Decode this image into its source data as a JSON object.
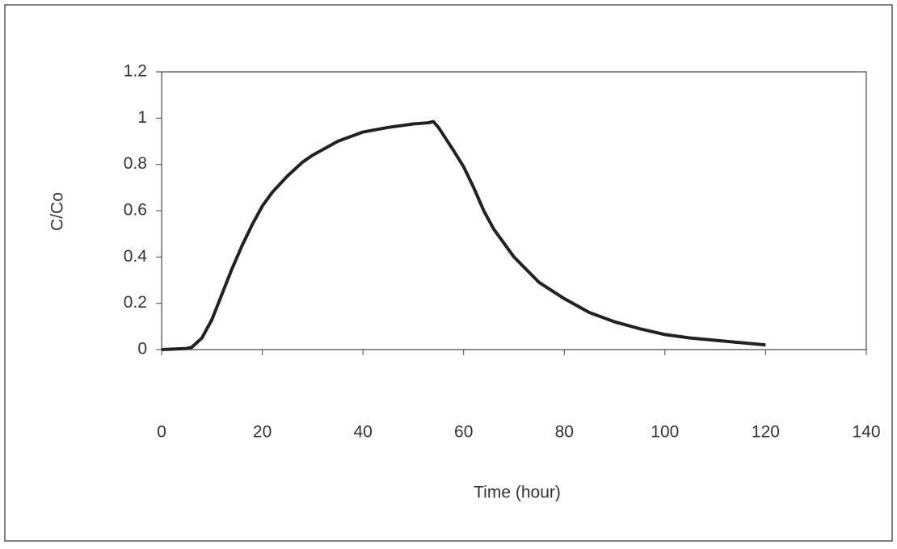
{
  "chart_data": {
    "type": "line",
    "xlabel": "Time (hour)",
    "ylabel": "C/Co",
    "x": [
      0,
      5,
      6,
      8,
      10,
      12,
      14,
      16,
      18,
      20,
      22,
      25,
      28,
      30,
      35,
      40,
      45,
      50,
      53,
      54,
      55,
      58,
      60,
      62,
      64,
      66,
      70,
      75,
      80,
      85,
      90,
      95,
      100,
      105,
      110,
      115,
      120
    ],
    "values": [
      0,
      0.005,
      0.01,
      0.05,
      0.13,
      0.24,
      0.35,
      0.45,
      0.54,
      0.62,
      0.68,
      0.75,
      0.81,
      0.84,
      0.9,
      0.94,
      0.96,
      0.975,
      0.98,
      0.985,
      0.96,
      0.86,
      0.79,
      0.7,
      0.6,
      0.52,
      0.4,
      0.29,
      0.22,
      0.16,
      0.12,
      0.09,
      0.065,
      0.05,
      0.04,
      0.03,
      0.02
    ],
    "color": "#222222",
    "xlim": [
      0,
      140
    ],
    "xticks": [
      0,
      20,
      40,
      60,
      80,
      100,
      120,
      140
    ],
    "ylim": [
      0,
      1.2
    ],
    "yticks": [
      0,
      0.2,
      0.4,
      0.6,
      0.8,
      1,
      1.2
    ]
  }
}
